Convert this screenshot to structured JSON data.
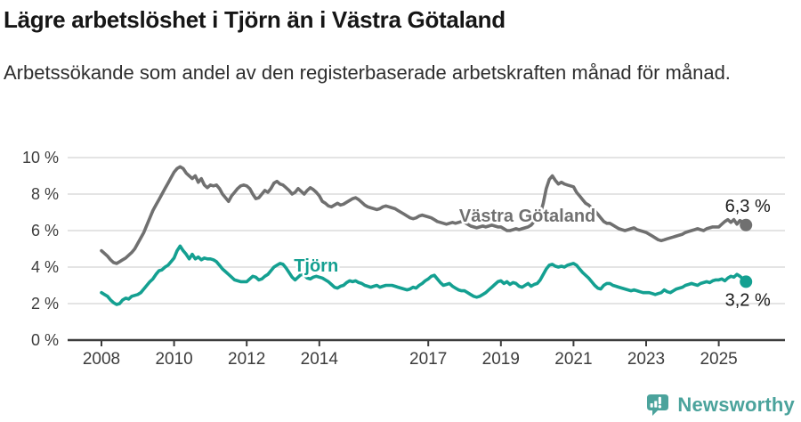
{
  "header": {
    "title": "Lägre arbetslöshet i Tjörn än i Västra Götaland",
    "subtitle": "Arbetssökande som andel av den registerbaserade arbetskraften månad för månad."
  },
  "footer": {
    "brand": "Newsworthy",
    "brand_color": "#4BA39C"
  },
  "chart_data": {
    "type": "line",
    "unit": "%",
    "x_start_year": 2008,
    "x_step_months": 1,
    "x_ticks": [
      2008,
      2010,
      2012,
      2014,
      2017,
      2019,
      2021,
      2023,
      2025
    ],
    "y_ticks": [
      0,
      2,
      4,
      6,
      8,
      10
    ],
    "y_tick_suffix": " %",
    "ylim": [
      0,
      10
    ],
    "grid": true,
    "legend_position": "inline-labels",
    "colors": {
      "grid": "#dcdcdc",
      "axis": "#3c3c3c"
    },
    "series": [
      {
        "name": "Västra Götaland",
        "color": "#707070",
        "end_label": "6,3 %",
        "end_label_pos": "above",
        "label": {
          "x": 2017.85,
          "y": 6.5
        },
        "values": [
          4.9,
          4.75,
          4.6,
          4.4,
          4.25,
          4.2,
          4.3,
          4.4,
          4.5,
          4.65,
          4.8,
          5.0,
          5.3,
          5.6,
          5.9,
          6.3,
          6.7,
          7.1,
          7.4,
          7.7,
          8.0,
          8.3,
          8.6,
          8.9,
          9.2,
          9.4,
          9.5,
          9.4,
          9.15,
          9.0,
          8.85,
          9.0,
          8.65,
          8.85,
          8.5,
          8.35,
          8.5,
          8.45,
          8.5,
          8.3,
          8.0,
          7.8,
          7.6,
          7.9,
          8.1,
          8.3,
          8.45,
          8.5,
          8.45,
          8.3,
          8.0,
          7.75,
          7.8,
          8.0,
          8.2,
          8.1,
          8.3,
          8.6,
          8.7,
          8.55,
          8.5,
          8.35,
          8.2,
          8.0,
          8.1,
          8.3,
          8.15,
          8.0,
          8.2,
          8.35,
          8.25,
          8.1,
          7.9,
          7.6,
          7.5,
          7.35,
          7.3,
          7.4,
          7.5,
          7.4,
          7.45,
          7.55,
          7.65,
          7.75,
          7.8,
          7.7,
          7.55,
          7.4,
          7.3,
          7.25,
          7.2,
          7.15,
          7.2,
          7.3,
          7.35,
          7.3,
          7.25,
          7.2,
          7.1,
          7.0,
          6.9,
          6.8,
          6.7,
          6.65,
          6.7,
          6.8,
          6.85,
          6.8,
          6.75,
          6.7,
          6.6,
          6.5,
          6.45,
          6.4,
          6.35,
          6.4,
          6.45,
          6.4,
          6.45,
          6.5,
          6.45,
          6.35,
          6.25,
          6.2,
          6.15,
          6.2,
          6.25,
          6.2,
          6.25,
          6.3,
          6.25,
          6.2,
          6.2,
          6.1,
          6.0,
          6.0,
          6.05,
          6.1,
          6.05,
          6.1,
          6.15,
          6.2,
          6.3,
          6.5,
          6.7,
          6.9,
          7.5,
          8.3,
          8.8,
          9.0,
          8.75,
          8.55,
          8.65,
          8.55,
          8.5,
          8.45,
          8.4,
          8.1,
          7.9,
          7.7,
          7.5,
          7.4,
          7.25,
          7.1,
          6.9,
          6.7,
          6.5,
          6.4,
          6.4,
          6.3,
          6.2,
          6.1,
          6.05,
          6.0,
          6.05,
          6.1,
          6.15,
          6.05,
          6.0,
          5.95,
          5.9,
          5.8,
          5.7,
          5.6,
          5.5,
          5.45,
          5.5,
          5.55,
          5.6,
          5.65,
          5.7,
          5.75,
          5.8,
          5.9,
          5.95,
          6.0,
          6.05,
          6.1,
          6.05,
          6.0,
          6.1,
          6.15,
          6.2,
          6.2,
          6.2,
          6.35,
          6.5,
          6.6,
          6.45,
          6.6,
          6.35,
          6.55,
          6.45,
          6.3
        ]
      },
      {
        "name": "Tjörn",
        "color": "#14A091",
        "end_label": "3,2 %",
        "end_label_pos": "below",
        "label": {
          "x": 2013.3,
          "y": 3.75
        },
        "values": [
          2.6,
          2.5,
          2.4,
          2.2,
          2.05,
          1.95,
          2.0,
          2.2,
          2.3,
          2.25,
          2.4,
          2.45,
          2.5,
          2.6,
          2.8,
          3.0,
          3.2,
          3.35,
          3.6,
          3.8,
          3.85,
          4.0,
          4.1,
          4.3,
          4.5,
          4.9,
          5.15,
          4.9,
          4.7,
          4.45,
          4.7,
          4.45,
          4.55,
          4.4,
          4.5,
          4.45,
          4.45,
          4.4,
          4.3,
          4.1,
          3.9,
          3.75,
          3.6,
          3.45,
          3.3,
          3.25,
          3.2,
          3.2,
          3.2,
          3.35,
          3.5,
          3.45,
          3.3,
          3.35,
          3.5,
          3.6,
          3.8,
          4.0,
          4.1,
          4.2,
          4.15,
          3.95,
          3.7,
          3.45,
          3.3,
          3.45,
          3.6,
          3.55,
          3.4,
          3.35,
          3.45,
          3.5,
          3.45,
          3.4,
          3.3,
          3.2,
          3.05,
          2.9,
          2.85,
          2.95,
          3.0,
          3.15,
          3.25,
          3.2,
          3.25,
          3.15,
          3.1,
          3.0,
          2.95,
          2.9,
          2.95,
          3.0,
          2.9,
          2.95,
          3.0,
          3.0,
          3.0,
          2.95,
          2.9,
          2.85,
          2.8,
          2.75,
          2.8,
          2.9,
          2.85,
          3.0,
          3.1,
          3.25,
          3.35,
          3.5,
          3.55,
          3.35,
          3.15,
          3.0,
          3.05,
          3.1,
          2.95,
          2.85,
          2.75,
          2.7,
          2.7,
          2.6,
          2.5,
          2.4,
          2.35,
          2.4,
          2.5,
          2.6,
          2.75,
          2.9,
          3.05,
          3.2,
          3.25,
          3.1,
          3.2,
          3.05,
          3.15,
          3.1,
          2.95,
          2.9,
          3.0,
          3.1,
          2.95,
          3.05,
          3.1,
          3.3,
          3.6,
          3.9,
          4.1,
          4.15,
          4.05,
          4.0,
          4.05,
          4.0,
          4.1,
          4.15,
          4.2,
          4.1,
          3.9,
          3.7,
          3.55,
          3.4,
          3.2,
          3.0,
          2.85,
          2.8,
          3.0,
          3.1,
          3.1,
          3.0,
          2.95,
          2.9,
          2.85,
          2.8,
          2.75,
          2.7,
          2.75,
          2.7,
          2.65,
          2.6,
          2.6,
          2.6,
          2.55,
          2.5,
          2.55,
          2.6,
          2.75,
          2.65,
          2.6,
          2.7,
          2.8,
          2.85,
          2.9,
          3.0,
          3.05,
          3.1,
          3.05,
          3.0,
          3.1,
          3.15,
          3.2,
          3.15,
          3.25,
          3.3,
          3.3,
          3.35,
          3.25,
          3.4,
          3.5,
          3.45,
          3.6,
          3.5,
          3.35,
          3.2
        ]
      }
    ]
  }
}
